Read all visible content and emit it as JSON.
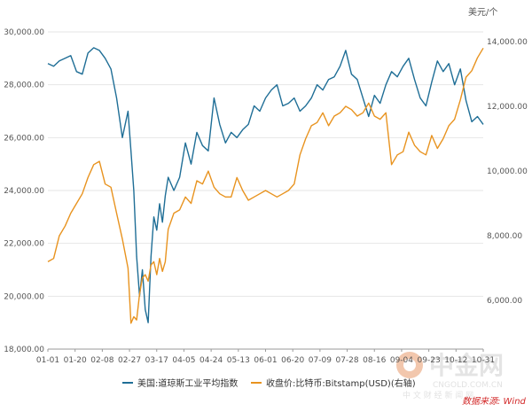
{
  "chart_data": {
    "type": "line",
    "title": "",
    "xlabel": "",
    "ylabel_left": "",
    "ylabel_right": "美元/个",
    "x_ticks": [
      "01-01",
      "01-20",
      "02-08",
      "02-27",
      "03-17",
      "04-05",
      "04-24",
      "05-13",
      "06-01",
      "06-20",
      "07-09",
      "07-28",
      "08-16",
      "09-04",
      "09-23",
      "10-12",
      "10-31"
    ],
    "x_range": [
      "01-01",
      "10-31"
    ],
    "ylim_left": [
      18000,
      30000
    ],
    "ylim_right": [
      4500,
      14300
    ],
    "y_ticks_left": [
      "18,000.00",
      "20,000.00",
      "22,000.00",
      "24,000.00",
      "26,000.00",
      "28,000.00",
      "30,000.00"
    ],
    "y_ticks_right": [
      "6,000.00",
      "8,000.00",
      "10,000.00",
      "12,000.00",
      "14,000.00"
    ],
    "grid": "horizontal",
    "legend_position": "bottom",
    "series": [
      {
        "name": "美国:道琼斯工业平均指数",
        "axis": "left",
        "color": "#1f6e96",
        "x": [
          0,
          4,
          8,
          12,
          16,
          20,
          24,
          28,
          32,
          36,
          40,
          44,
          48,
          52,
          56,
          58,
          60,
          62,
          64,
          66,
          68,
          70,
          72,
          74,
          76,
          78,
          80,
          82,
          84,
          88,
          92,
          96,
          100,
          104,
          108,
          112,
          116,
          120,
          124,
          128,
          132,
          136,
          140,
          144,
          148,
          152,
          156,
          160,
          164,
          168,
          172,
          176,
          180,
          184,
          188,
          192,
          196,
          200,
          204,
          208,
          212,
          216,
          220,
          224,
          228,
          232,
          236,
          240,
          244,
          248,
          252,
          256,
          260,
          264,
          268,
          272,
          276,
          280,
          284,
          288,
          292,
          296,
          300,
          304
        ],
        "values": [
          28800,
          28700,
          28900,
          29000,
          29100,
          28500,
          28400,
          29200,
          29400,
          29300,
          29000,
          28600,
          27500,
          26000,
          27000,
          25500,
          24000,
          21500,
          20000,
          21000,
          19500,
          19000,
          21500,
          23000,
          22500,
          23500,
          22800,
          23800,
          24500,
          24000,
          24500,
          25800,
          25000,
          26200,
          25700,
          25500,
          27500,
          26500,
          25800,
          26200,
          26000,
          26300,
          26500,
          27200,
          27000,
          27500,
          27800,
          28000,
          27200,
          27300,
          27500,
          27000,
          27200,
          27500,
          28000,
          27800,
          28200,
          28300,
          28700,
          29300,
          28400,
          28200,
          27500,
          26800,
          27600,
          27300,
          28000,
          28500,
          28300,
          28700,
          29000,
          28200,
          27500,
          27200,
          28100,
          28900,
          28500,
          28800,
          28000,
          28600,
          27400,
          26600,
          26800,
          26500
        ]
      },
      {
        "name": "收盘价:比特币:Bitstamp(USD)(右轴)",
        "axis": "right",
        "color": "#e8931f",
        "x": [
          0,
          4,
          8,
          12,
          16,
          20,
          24,
          28,
          32,
          36,
          40,
          44,
          48,
          52,
          56,
          58,
          60,
          62,
          64,
          66,
          68,
          70,
          72,
          74,
          76,
          78,
          80,
          82,
          84,
          88,
          92,
          96,
          100,
          104,
          108,
          112,
          116,
          120,
          124,
          128,
          132,
          136,
          140,
          144,
          148,
          152,
          156,
          160,
          164,
          168,
          172,
          176,
          180,
          184,
          188,
          192,
          196,
          200,
          204,
          208,
          212,
          216,
          220,
          224,
          228,
          232,
          236,
          240,
          244,
          248,
          252,
          256,
          260,
          264,
          268,
          272,
          276,
          280,
          284,
          288,
          292,
          296,
          300,
          304
        ],
        "values": [
          7200,
          7300,
          8000,
          8300,
          8700,
          9000,
          9300,
          9800,
          10200,
          10300,
          9600,
          9500,
          8700,
          7900,
          7000,
          5300,
          5500,
          5400,
          6200,
          6700,
          6800,
          6600,
          7100,
          7200,
          6800,
          7300,
          6900,
          7200,
          8200,
          8700,
          8800,
          9200,
          9000,
          9700,
          9600,
          10000,
          9500,
          9300,
          9200,
          9200,
          9800,
          9400,
          9100,
          9200,
          9300,
          9400,
          9300,
          9200,
          9300,
          9400,
          9600,
          10500,
          11000,
          11400,
          11500,
          11800,
          11400,
          11700,
          11800,
          12000,
          11900,
          11700,
          11800,
          12100,
          11700,
          11600,
          11800,
          10200,
          10500,
          10600,
          11200,
          10800,
          10600,
          10500,
          11100,
          10700,
          11000,
          11400,
          11600,
          12200,
          12900,
          13100,
          13500,
          13800
        ]
      }
    ]
  },
  "legend": {
    "dow_label": "美国:道琼斯工业平均指数",
    "btc_label": "收盘价:比特币:Bitstamp(USD)(右轴)"
  },
  "source_text": "数据来源: Wind",
  "watermark": {
    "main": "中金网",
    "sub": "中 文 财 经 新 闻 网",
    "url": "CNGOLD.COM.CN"
  }
}
